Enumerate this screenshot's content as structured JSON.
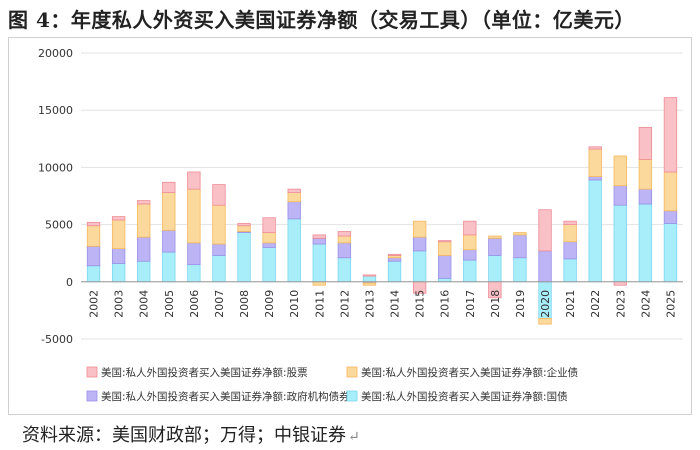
{
  "title": "图 4：年度私人外资买入美国证券净额（交易工具）（单位：亿美元）",
  "source": "资料来源：美国财政部；万得；中银证券",
  "chart_data": {
    "type": "bar",
    "stacked": true,
    "categories": [
      "2002",
      "2003",
      "2004",
      "2005",
      "2006",
      "2007",
      "2008",
      "2009",
      "2010",
      "2011",
      "2012",
      "2013",
      "2014",
      "2015",
      "2016",
      "2017",
      "2018",
      "2019",
      "2020",
      "2021",
      "2022",
      "2023",
      "2024",
      "2025"
    ],
    "ylim": [
      -5000,
      20000
    ],
    "yticks": [
      -5000,
      0,
      5000,
      10000,
      15000,
      20000
    ],
    "grid": true,
    "legend_position": "bottom",
    "series": [
      {
        "name": "美国:私人外国投资者买入美国证券净额:国债",
        "color": "#a8eefa",
        "border": "#7cd6ec",
        "values": [
          1400,
          1600,
          1800,
          2600,
          1500,
          2300,
          4300,
          3000,
          5500,
          3300,
          2100,
          500,
          1800,
          2700,
          300,
          1900,
          2300,
          2100,
          -3200,
          2000,
          8900,
          6700,
          6800,
          5100
        ]
      },
      {
        "name": "美国:私人外国投资者买入美国证券净额:政府机构债券",
        "color": "#bcb4f4",
        "border": "#9a90e6",
        "values": [
          1700,
          1300,
          2100,
          1900,
          1900,
          1000,
          100,
          400,
          1500,
          500,
          1300,
          -100,
          300,
          1200,
          2000,
          900,
          1500,
          2000,
          2700,
          1500,
          300,
          1700,
          1300,
          1100
        ]
      },
      {
        "name": "美国:私人外国投资者买入美国证券净额:企业债",
        "color": "#fbd89b",
        "border": "#f4b860",
        "values": [
          1800,
          2500,
          2900,
          3300,
          4700,
          3400,
          500,
          900,
          800,
          -300,
          600,
          -200,
          200,
          1400,
          1200,
          1300,
          200,
          200,
          -500,
          1500,
          2400,
          2600,
          2600,
          3400
        ]
      },
      {
        "name": "美国:私人外国投资者买入美国证券净额:股票",
        "color": "#f9c0c6",
        "border": "#ee8c97",
        "values": [
          300,
          300,
          300,
          900,
          1500,
          1800,
          200,
          1300,
          300,
          300,
          400,
          100,
          100,
          -1000,
          100,
          1200,
          -1400,
          0,
          3600,
          300,
          200,
          -300,
          2800,
          6500
        ]
      }
    ],
    "legend_order": [
      3,
      2,
      1,
      0
    ]
  }
}
